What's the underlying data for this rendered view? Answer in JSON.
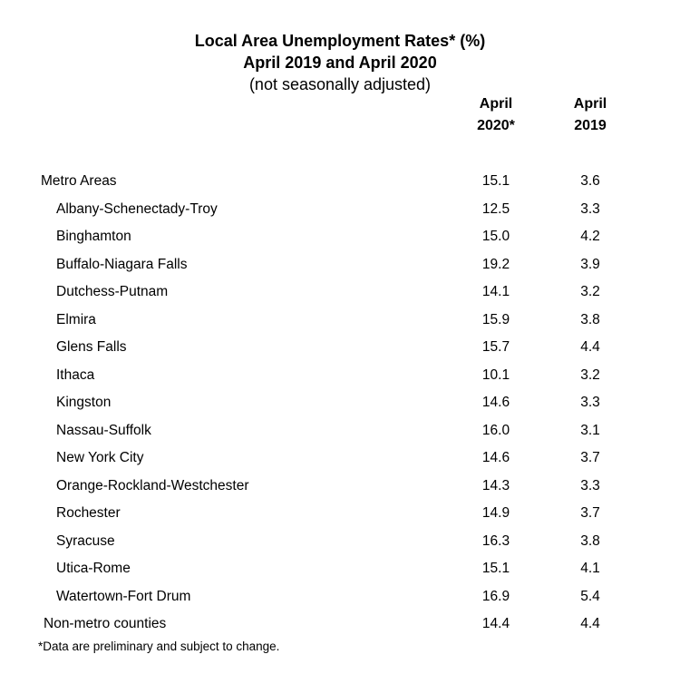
{
  "title": {
    "line1": "Local Area Unemployment Rates* (%)",
    "line2": "April 2019 and April 2020",
    "line3": "(not seasonally adjusted)"
  },
  "header": {
    "col2020": [
      "April",
      "2020*"
    ],
    "col2019": [
      "April",
      "2019"
    ]
  },
  "rows": [
    {
      "label": "Metro Areas",
      "v2020": "15.1",
      "v2019": "3.6"
    },
    {
      "label": "Albany-Schenectady-Troy",
      "v2020": "12.5",
      "v2019": "3.3"
    },
    {
      "label": "Binghamton",
      "v2020": "15.0",
      "v2019": "4.2"
    },
    {
      "label": "Buffalo-Niagara Falls",
      "v2020": "19.2",
      "v2019": "3.9"
    },
    {
      "label": "Dutchess-Putnam",
      "v2020": "14.1",
      "v2019": "3.2"
    },
    {
      "label": "Elmira",
      "v2020": "15.9",
      "v2019": "3.8"
    },
    {
      "label": "Glens Falls",
      "v2020": "15.7",
      "v2019": "4.4"
    },
    {
      "label": "Ithaca",
      "v2020": "10.1",
      "v2019": "3.2"
    },
    {
      "label": "Kingston",
      "v2020": "14.6",
      "v2019": "3.3"
    },
    {
      "label": "Nassau-Suffolk",
      "v2020": "16.0",
      "v2019": "3.1"
    },
    {
      "label": "New York City",
      "v2020": "14.6",
      "v2019": "3.7"
    },
    {
      "label": "Orange-Rockland-Westchester",
      "v2020": "14.3",
      "v2019": "3.3"
    },
    {
      "label": "Rochester",
      "v2020": "14.9",
      "v2019": "3.7"
    },
    {
      "label": "Syracuse",
      "v2020": "16.3",
      "v2019": "3.8"
    },
    {
      "label": "Utica-Rome",
      "v2020": "15.1",
      "v2019": "4.1"
    },
    {
      "label": "Watertown-Fort Drum",
      "v2020": "16.9",
      "v2019": "5.4"
    },
    {
      "label": "Non-metro counties",
      "v2020": "14.4",
      "v2019": "4.4"
    }
  ],
  "footnote": "*Data are preliminary and subject to change."
}
